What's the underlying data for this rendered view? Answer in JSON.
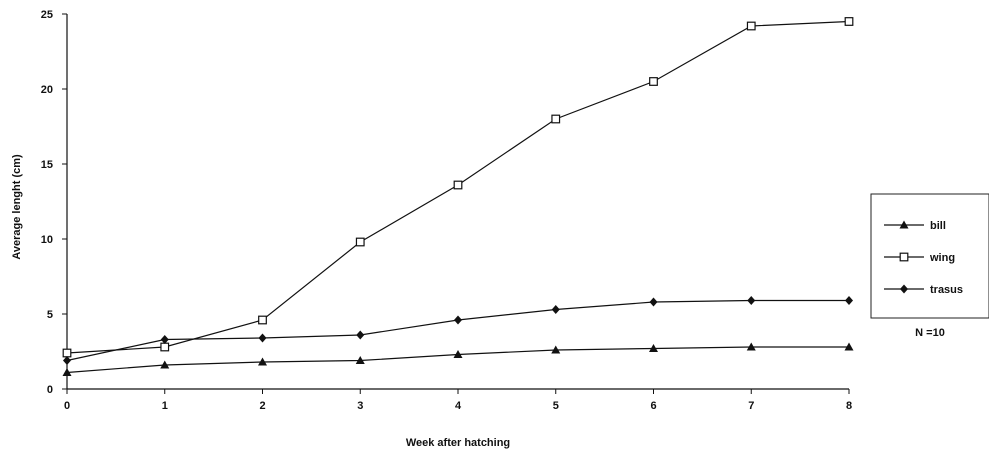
{
  "chart_data": {
    "type": "line",
    "title": "",
    "xlabel": "Week after hatching",
    "ylabel": "Average lenght  (cm)",
    "x": [
      0,
      1,
      2,
      3,
      4,
      5,
      6,
      7,
      8
    ],
    "xlim": [
      0,
      8
    ],
    "ylim": [
      0,
      25
    ],
    "x_ticks": [
      "0",
      "1",
      "2",
      "3",
      "4",
      "5",
      "6",
      "7",
      "8"
    ],
    "y_ticks": [
      "0",
      "5",
      "10",
      "15",
      "20",
      "25"
    ],
    "grid": false,
    "legend_position": "right",
    "series": [
      {
        "name": "bill",
        "marker": "filled-triangle",
        "values": [
          1.1,
          1.6,
          1.8,
          1.9,
          2.3,
          2.6,
          2.7,
          2.8,
          2.8
        ]
      },
      {
        "name": "wing",
        "marker": "open-square",
        "values": [
          2.4,
          2.8,
          4.6,
          9.8,
          13.6,
          18.0,
          20.5,
          24.2,
          24.5
        ]
      },
      {
        "name": "trasus",
        "marker": "filled-diamond",
        "values": [
          1.9,
          3.3,
          3.4,
          3.6,
          4.6,
          5.3,
          5.8,
          5.9,
          5.9
        ]
      }
    ],
    "annotation": "N =10"
  }
}
